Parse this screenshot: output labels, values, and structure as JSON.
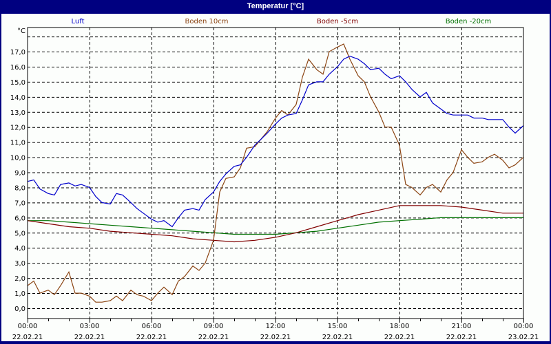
{
  "window": {
    "title": "Temperatur [°C]"
  },
  "chart_data": {
    "type": "line",
    "title": "Temperatur [°C]",
    "ylabel": "°C",
    "xlabel": "",
    "ylim": [
      -0.5,
      18.5
    ],
    "grid": true,
    "legend_position": "top",
    "y_ticks": [
      "0,0",
      "1,0",
      "2,0",
      "3,0",
      "4,0",
      "5,0",
      "6,0",
      "7,0",
      "8,0",
      "9,0",
      "10,0",
      "11,0",
      "12,0",
      "13,0",
      "14,0",
      "15,0",
      "16,0",
      "17,0"
    ],
    "x_ticks": [
      {
        "time": "00:00",
        "date": "22.02.21"
      },
      {
        "time": "03:00",
        "date": "22.02.21"
      },
      {
        "time": "06:00",
        "date": "22.02.21"
      },
      {
        "time": "09:00",
        "date": "22.02.21"
      },
      {
        "time": "12:00",
        "date": "22.02.21"
      },
      {
        "time": "15:00",
        "date": "22.02.21"
      },
      {
        "time": "18:00",
        "date": "22.02.21"
      },
      {
        "time": "21:00",
        "date": "22.02.21"
      },
      {
        "time": "00:00",
        "date": "23.02.21"
      }
    ],
    "x_unit": "hours since 22.02.21 00:00",
    "series": [
      {
        "name": "Luft",
        "color": "#0000cc",
        "x": [
          0,
          0.3,
          0.6,
          1.0,
          1.3,
          1.6,
          2.0,
          2.3,
          2.6,
          3.0,
          3.3,
          3.6,
          4.0,
          4.3,
          4.6,
          5.0,
          5.3,
          5.6,
          6.0,
          6.3,
          6.6,
          7.0,
          7.3,
          7.6,
          8.0,
          8.3,
          8.6,
          9.0,
          9.3,
          9.6,
          10.0,
          10.3,
          10.6,
          11.0,
          11.3,
          11.6,
          12.0,
          12.3,
          12.6,
          13.0,
          13.3,
          13.6,
          14.0,
          14.3,
          14.6,
          15.0,
          15.3,
          15.6,
          16.0,
          16.3,
          16.6,
          17.0,
          17.3,
          17.6,
          18.0,
          18.3,
          18.6,
          19.0,
          19.3,
          19.6,
          20.0,
          20.3,
          20.6,
          21.0,
          21.3,
          21.6,
          22.0,
          22.3,
          22.6,
          23.0,
          23.3,
          23.6,
          24.0
        ],
        "y": [
          8.4,
          8.5,
          7.9,
          7.6,
          7.5,
          8.2,
          8.3,
          8.1,
          8.2,
          8.0,
          7.4,
          7.0,
          6.9,
          7.6,
          7.5,
          7.0,
          6.6,
          6.3,
          5.9,
          5.7,
          5.8,
          5.4,
          6.0,
          6.5,
          6.6,
          6.5,
          7.2,
          7.7,
          8.4,
          8.9,
          9.4,
          9.5,
          10.0,
          10.8,
          11.2,
          11.6,
          12.2,
          12.6,
          12.8,
          12.9,
          13.8,
          14.8,
          15.0,
          15.0,
          15.5,
          16.0,
          16.5,
          16.7,
          16.5,
          16.2,
          15.8,
          15.9,
          15.5,
          15.2,
          15.4,
          15.0,
          14.5,
          14.0,
          14.3,
          13.6,
          13.2,
          12.9,
          12.8,
          12.8,
          12.8,
          12.6,
          12.6,
          12.5,
          12.5,
          12.5,
          12.0,
          11.6,
          12.1
        ]
      },
      {
        "name": "Boden 10cm",
        "color": "#8b4513",
        "x": [
          0,
          0.3,
          0.6,
          1.0,
          1.3,
          1.6,
          2.0,
          2.3,
          2.6,
          3.0,
          3.3,
          3.6,
          4.0,
          4.3,
          4.6,
          5.0,
          5.3,
          5.6,
          6.0,
          6.3,
          6.6,
          7.0,
          7.3,
          7.6,
          8.0,
          8.3,
          8.6,
          9.0,
          9.3,
          9.6,
          10.0,
          10.3,
          10.6,
          11.0,
          11.3,
          11.6,
          12.0,
          12.3,
          12.6,
          13.0,
          13.3,
          13.6,
          14.0,
          14.3,
          14.6,
          15.0,
          15.3,
          15.6,
          16.0,
          16.3,
          16.6,
          17.0,
          17.3,
          17.6,
          18.0,
          18.3,
          18.6,
          19.0,
          19.3,
          19.6,
          20.0,
          20.3,
          20.6,
          21.0,
          21.3,
          21.6,
          22.0,
          22.3,
          22.6,
          23.0,
          23.3,
          23.6,
          24.0
        ],
        "y": [
          1.5,
          1.8,
          1.0,
          1.2,
          0.9,
          1.5,
          2.4,
          1.0,
          1.0,
          0.8,
          0.4,
          0.4,
          0.5,
          0.8,
          0.5,
          1.2,
          0.9,
          0.8,
          0.5,
          1.0,
          1.4,
          0.9,
          1.8,
          2.1,
          2.8,
          2.5,
          3.0,
          4.5,
          7.7,
          8.6,
          8.7,
          9.3,
          10.6,
          10.7,
          11.2,
          11.7,
          12.6,
          13.1,
          12.8,
          13.5,
          15.3,
          16.5,
          15.8,
          15.5,
          17.0,
          17.3,
          17.5,
          16.5,
          15.4,
          15.0,
          14.0,
          13.0,
          12.0,
          12.0,
          10.8,
          8.2,
          8.0,
          7.5,
          8.0,
          8.2,
          7.7,
          8.5,
          9.0,
          10.5,
          10.0,
          9.6,
          9.7,
          10.0,
          10.2,
          9.8,
          9.3,
          9.5,
          10.0
        ]
      },
      {
        "name": "Boden -5cm",
        "color": "#800000",
        "x": [
          0,
          1,
          2,
          3,
          4,
          5,
          6,
          7,
          8,
          9,
          10,
          11,
          12,
          13,
          14,
          15,
          16,
          17,
          18,
          19,
          20,
          21,
          22,
          23,
          24
        ],
        "y": [
          5.8,
          5.6,
          5.4,
          5.3,
          5.1,
          5.0,
          4.9,
          4.8,
          4.6,
          4.5,
          4.4,
          4.5,
          4.7,
          5.0,
          5.4,
          5.8,
          6.2,
          6.5,
          6.8,
          6.8,
          6.8,
          6.7,
          6.5,
          6.3,
          6.3
        ]
      },
      {
        "name": "Boden -20cm",
        "color": "#007000",
        "x": [
          0,
          1,
          2,
          3,
          4,
          5,
          6,
          7,
          8,
          9,
          10,
          11,
          12,
          13,
          14,
          15,
          16,
          17,
          18,
          19,
          20,
          21,
          22,
          23,
          24
        ],
        "y": [
          5.8,
          5.8,
          5.7,
          5.6,
          5.5,
          5.4,
          5.3,
          5.2,
          5.1,
          5.0,
          4.9,
          4.9,
          4.9,
          5.0,
          5.1,
          5.3,
          5.5,
          5.7,
          5.8,
          5.9,
          6.0,
          6.0,
          6.0,
          6.0,
          6.0
        ]
      }
    ]
  }
}
